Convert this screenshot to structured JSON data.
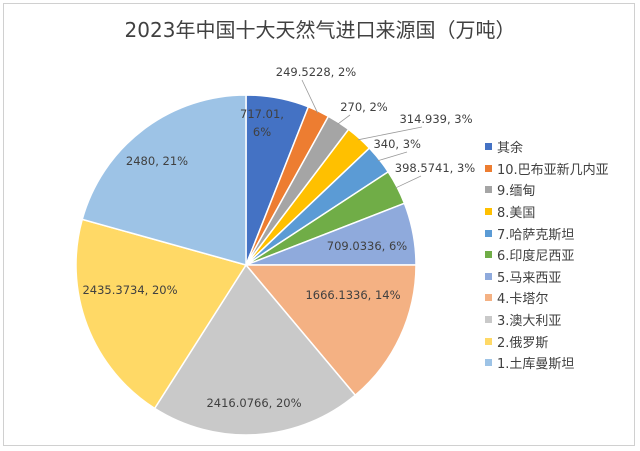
{
  "chart_data": {
    "type": "pie",
    "title": "2023年中国十大天然气进口来源国（万吨）",
    "categories": [
      "其余",
      "10.巴布亚新几内亚",
      "9.缅甸",
      "8.美国",
      "7.哈萨克斯坦",
      "6.印度尼西亚",
      "5.马来西亚",
      "4.卡塔尔",
      "3.澳大利亚",
      "2.俄罗斯",
      "1.土库曼斯坦"
    ],
    "values": [
      717.01,
      249.5228,
      270,
      314.939,
      340,
      398.5741,
      709.0336,
      1666.1336,
      2416.0766,
      2435.3734,
      2480
    ],
    "percent_labels": [
      "6%",
      "2%",
      "2%",
      "3%",
      "3%",
      "3%",
      "6%",
      "14%",
      "20%",
      "20%",
      "21%"
    ],
    "value_labels": [
      "717.01,",
      "249.5228,",
      "270,",
      "314.939,",
      "340,",
      "398.5741,",
      "709.0336,",
      "1666.1336,",
      "2416.0766,",
      "2435.3734,",
      "2480,"
    ],
    "colors": [
      "#4472C4",
      "#ED7D31",
      "#A5A5A5",
      "#FFC000",
      "#5B9BD5",
      "#70AD47",
      "#8FAADC",
      "#F4B183",
      "#C9C9C9",
      "#FFD966",
      "#9DC3E6"
    ],
    "legend_position": "right"
  }
}
